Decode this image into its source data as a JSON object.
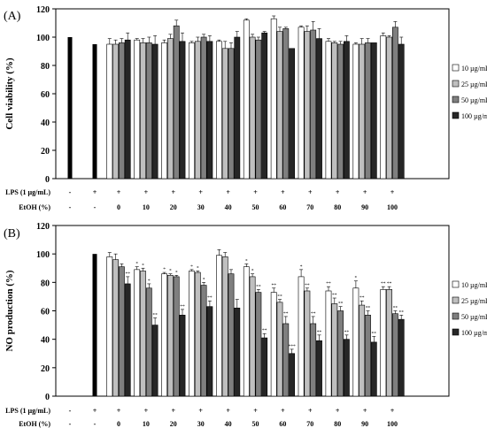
{
  "chart_data": [
    {
      "type": "bar",
      "panel_label": "(A)",
      "ylabel": "Cell viability (%)",
      "ylim": [
        0,
        120
      ],
      "yticks": [
        0,
        20,
        40,
        60,
        80,
        100,
        120
      ],
      "grid": false,
      "legend_position": "right",
      "row_labels": [
        "LPS (1 µg/mL)",
        "EtOH (%)"
      ],
      "groups": [
        {
          "lps": "-",
          "etoh": "-",
          "values": [
            100
          ],
          "errors": [
            0
          ]
        },
        {
          "lps": "+",
          "etoh": "-",
          "values": [
            95
          ],
          "errors": [
            0
          ]
        },
        {
          "lps": "+",
          "etoh": "0",
          "values": [
            95,
            95,
            96,
            98
          ],
          "errors": [
            4,
            3,
            3,
            5
          ]
        },
        {
          "lps": "+",
          "etoh": "10",
          "values": [
            98,
            96,
            96,
            95
          ],
          "errors": [
            1,
            3,
            4,
            6
          ]
        },
        {
          "lps": "+",
          "etoh": "20",
          "values": [
            96,
            99,
            108,
            97
          ],
          "errors": [
            2,
            3,
            4,
            6
          ]
        },
        {
          "lps": "+",
          "etoh": "30",
          "values": [
            96,
            97,
            100,
            97
          ],
          "errors": [
            1,
            3,
            2,
            4
          ]
        },
        {
          "lps": "+",
          "etoh": "40",
          "values": [
            97,
            92,
            92,
            100
          ],
          "errors": [
            1,
            5,
            4,
            4
          ]
        },
        {
          "lps": "+",
          "etoh": "50",
          "values": [
            112,
            100,
            98,
            103
          ],
          "errors": [
            1,
            2,
            2,
            1
          ]
        },
        {
          "lps": "+",
          "etoh": "60",
          "values": [
            113,
            104,
            106,
            92
          ],
          "errors": [
            2,
            3,
            1,
            0
          ]
        },
        {
          "lps": "+",
          "etoh": "70",
          "values": [
            107,
            104,
            105,
            99
          ],
          "errors": [
            1,
            4,
            6,
            7
          ]
        },
        {
          "lps": "+",
          "etoh": "80",
          "values": [
            97,
            96,
            95,
            97
          ],
          "errors": [
            2,
            1,
            2,
            4
          ]
        },
        {
          "lps": "+",
          "etoh": "90",
          "values": [
            95,
            95,
            96,
            96
          ],
          "errors": [
            1,
            4,
            3,
            0
          ]
        },
        {
          "lps": "+",
          "etoh": "100",
          "values": [
            101,
            100,
            107,
            95
          ],
          "errors": [
            2,
            1,
            4,
            5
          ]
        }
      ],
      "significance": []
    },
    {
      "type": "bar",
      "panel_label": "(B)",
      "ylabel": "NO production (%)",
      "ylim": [
        0,
        120
      ],
      "yticks": [
        0,
        20,
        40,
        60,
        80,
        100,
        120
      ],
      "grid": false,
      "legend_position": "right",
      "row_labels": [
        "LPS (1 µg/mL)",
        "EtOH (%)"
      ],
      "groups": [
        {
          "lps": "-",
          "etoh": "-",
          "values": [
            0
          ],
          "errors": [
            0
          ]
        },
        {
          "lps": "+",
          "etoh": "-",
          "values": [
            100
          ],
          "errors": [
            0
          ]
        },
        {
          "lps": "+",
          "etoh": "0",
          "values": [
            98,
            96,
            91,
            79
          ],
          "errors": [
            3,
            4,
            2,
            5
          ]
        },
        {
          "lps": "+",
          "etoh": "10",
          "values": [
            89,
            88,
            76,
            50
          ],
          "errors": [
            2,
            2,
            3,
            5
          ]
        },
        {
          "lps": "+",
          "etoh": "20",
          "values": [
            86,
            85,
            84,
            57
          ],
          "errors": [
            1,
            1,
            1,
            4
          ]
        },
        {
          "lps": "+",
          "etoh": "30",
          "values": [
            88,
            87,
            78,
            63
          ],
          "errors": [
            1,
            1,
            2,
            4
          ]
        },
        {
          "lps": "+",
          "etoh": "40",
          "values": [
            99,
            98,
            86,
            62
          ],
          "errors": [
            4,
            3,
            3,
            6
          ]
        },
        {
          "lps": "+",
          "etoh": "50",
          "values": [
            91,
            84,
            73,
            41
          ],
          "errors": [
            2,
            2,
            2,
            3
          ]
        },
        {
          "lps": "+",
          "etoh": "60",
          "values": [
            73,
            66,
            51,
            30
          ],
          "errors": [
            3,
            2,
            5,
            3
          ]
        },
        {
          "lps": "+",
          "etoh": "70",
          "values": [
            84,
            74,
            51,
            39
          ],
          "errors": [
            5,
            2,
            5,
            4
          ]
        },
        {
          "lps": "+",
          "etoh": "80",
          "values": [
            74,
            65,
            60,
            40
          ],
          "errors": [
            3,
            4,
            3,
            3
          ]
        },
        {
          "lps": "+",
          "etoh": "90",
          "values": [
            76,
            64,
            57,
            38
          ],
          "errors": [
            5,
            3,
            3,
            4
          ]
        },
        {
          "lps": "+",
          "etoh": "100",
          "values": [
            75,
            75,
            58,
            54
          ],
          "errors": [
            2,
            2,
            2,
            3
          ]
        }
      ],
      "significance": [
        [
          "",
          "",
          "",
          "**"
        ],
        [
          "*",
          "*",
          "*",
          "**"
        ],
        [
          "*",
          "*",
          "*",
          "**"
        ],
        [
          "*",
          "*",
          "*",
          "**"
        ],
        [
          "",
          "",
          "",
          ""
        ],
        [
          "*",
          "*",
          "**",
          "**"
        ],
        [
          "**",
          "**",
          "**",
          "***"
        ],
        [
          "*",
          "**",
          "**",
          "**"
        ],
        [
          "**",
          "**",
          "**",
          "**"
        ],
        [
          "*",
          "**",
          "**",
          "**"
        ],
        [
          "**",
          "**",
          "**",
          "**"
        ]
      ]
    }
  ],
  "legend": {
    "entries": [
      "10 µg/mL",
      "25 µg/mL",
      "50 µg/mL",
      "100 µg/mL"
    ],
    "colors": [
      "#ffffff",
      "#bfbfbf",
      "#7f7f7f",
      "#262626"
    ]
  },
  "control_color": "#000000"
}
